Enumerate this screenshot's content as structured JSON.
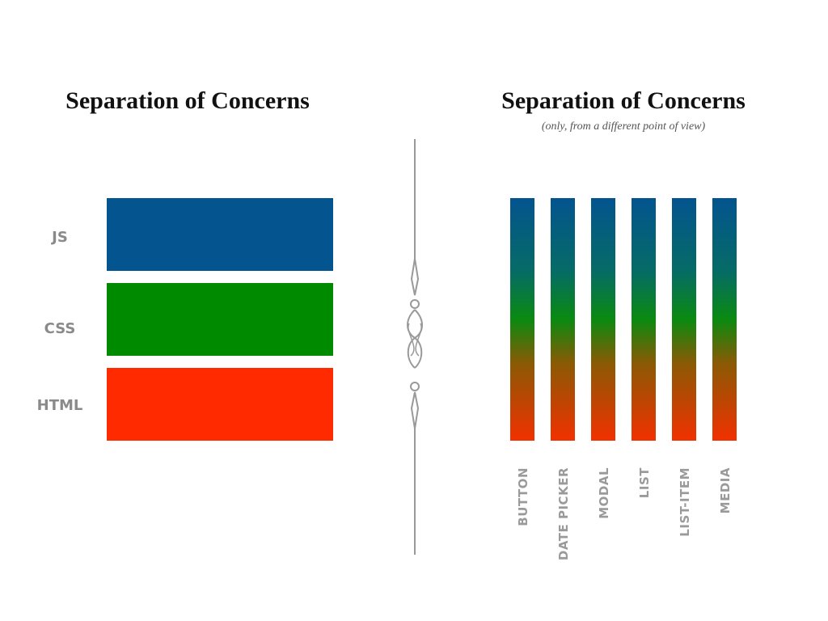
{
  "left": {
    "title": "Separation of Concerns",
    "layers": [
      "JS",
      "CSS",
      "HTML"
    ]
  },
  "right": {
    "title": "Separation of Concerns",
    "subtitle": "(only, from a different point of view)",
    "components": [
      "BUTTON",
      "DATE PICKER",
      "MODAL",
      "LIST",
      "LIST-ITEM",
      "MEDIA"
    ]
  }
}
